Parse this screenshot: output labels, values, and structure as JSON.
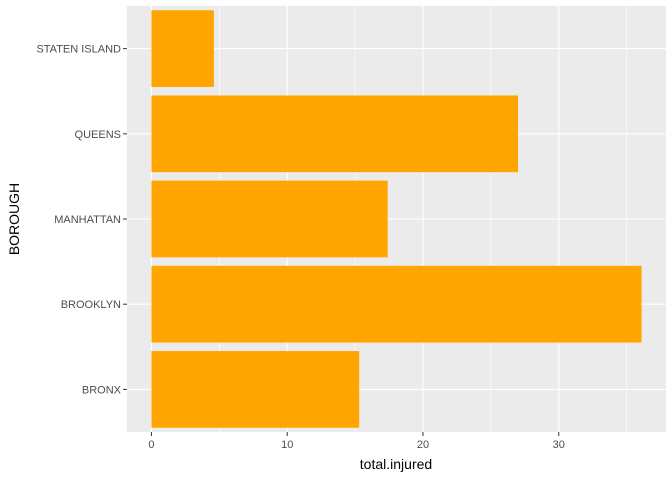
{
  "chart_data": {
    "type": "bar",
    "orientation": "horizontal",
    "xlabel": "total.injured",
    "ylabel": "BOROUGH",
    "categories": [
      "BRONX",
      "BROOKLYN",
      "MANHATTAN",
      "QUEENS",
      "STATEN ISLAND"
    ],
    "values": [
      15.3,
      36.1,
      17.4,
      27.0,
      4.6
    ],
    "xlim": [
      -1.8,
      37.9
    ],
    "x_ticks": [
      0,
      10,
      20,
      30
    ],
    "grid": true,
    "legend": "none",
    "colors": {
      "bar": "#FFA500",
      "panel_background": "#EBEBEB",
      "grid_major": "#FFFFFF"
    }
  }
}
